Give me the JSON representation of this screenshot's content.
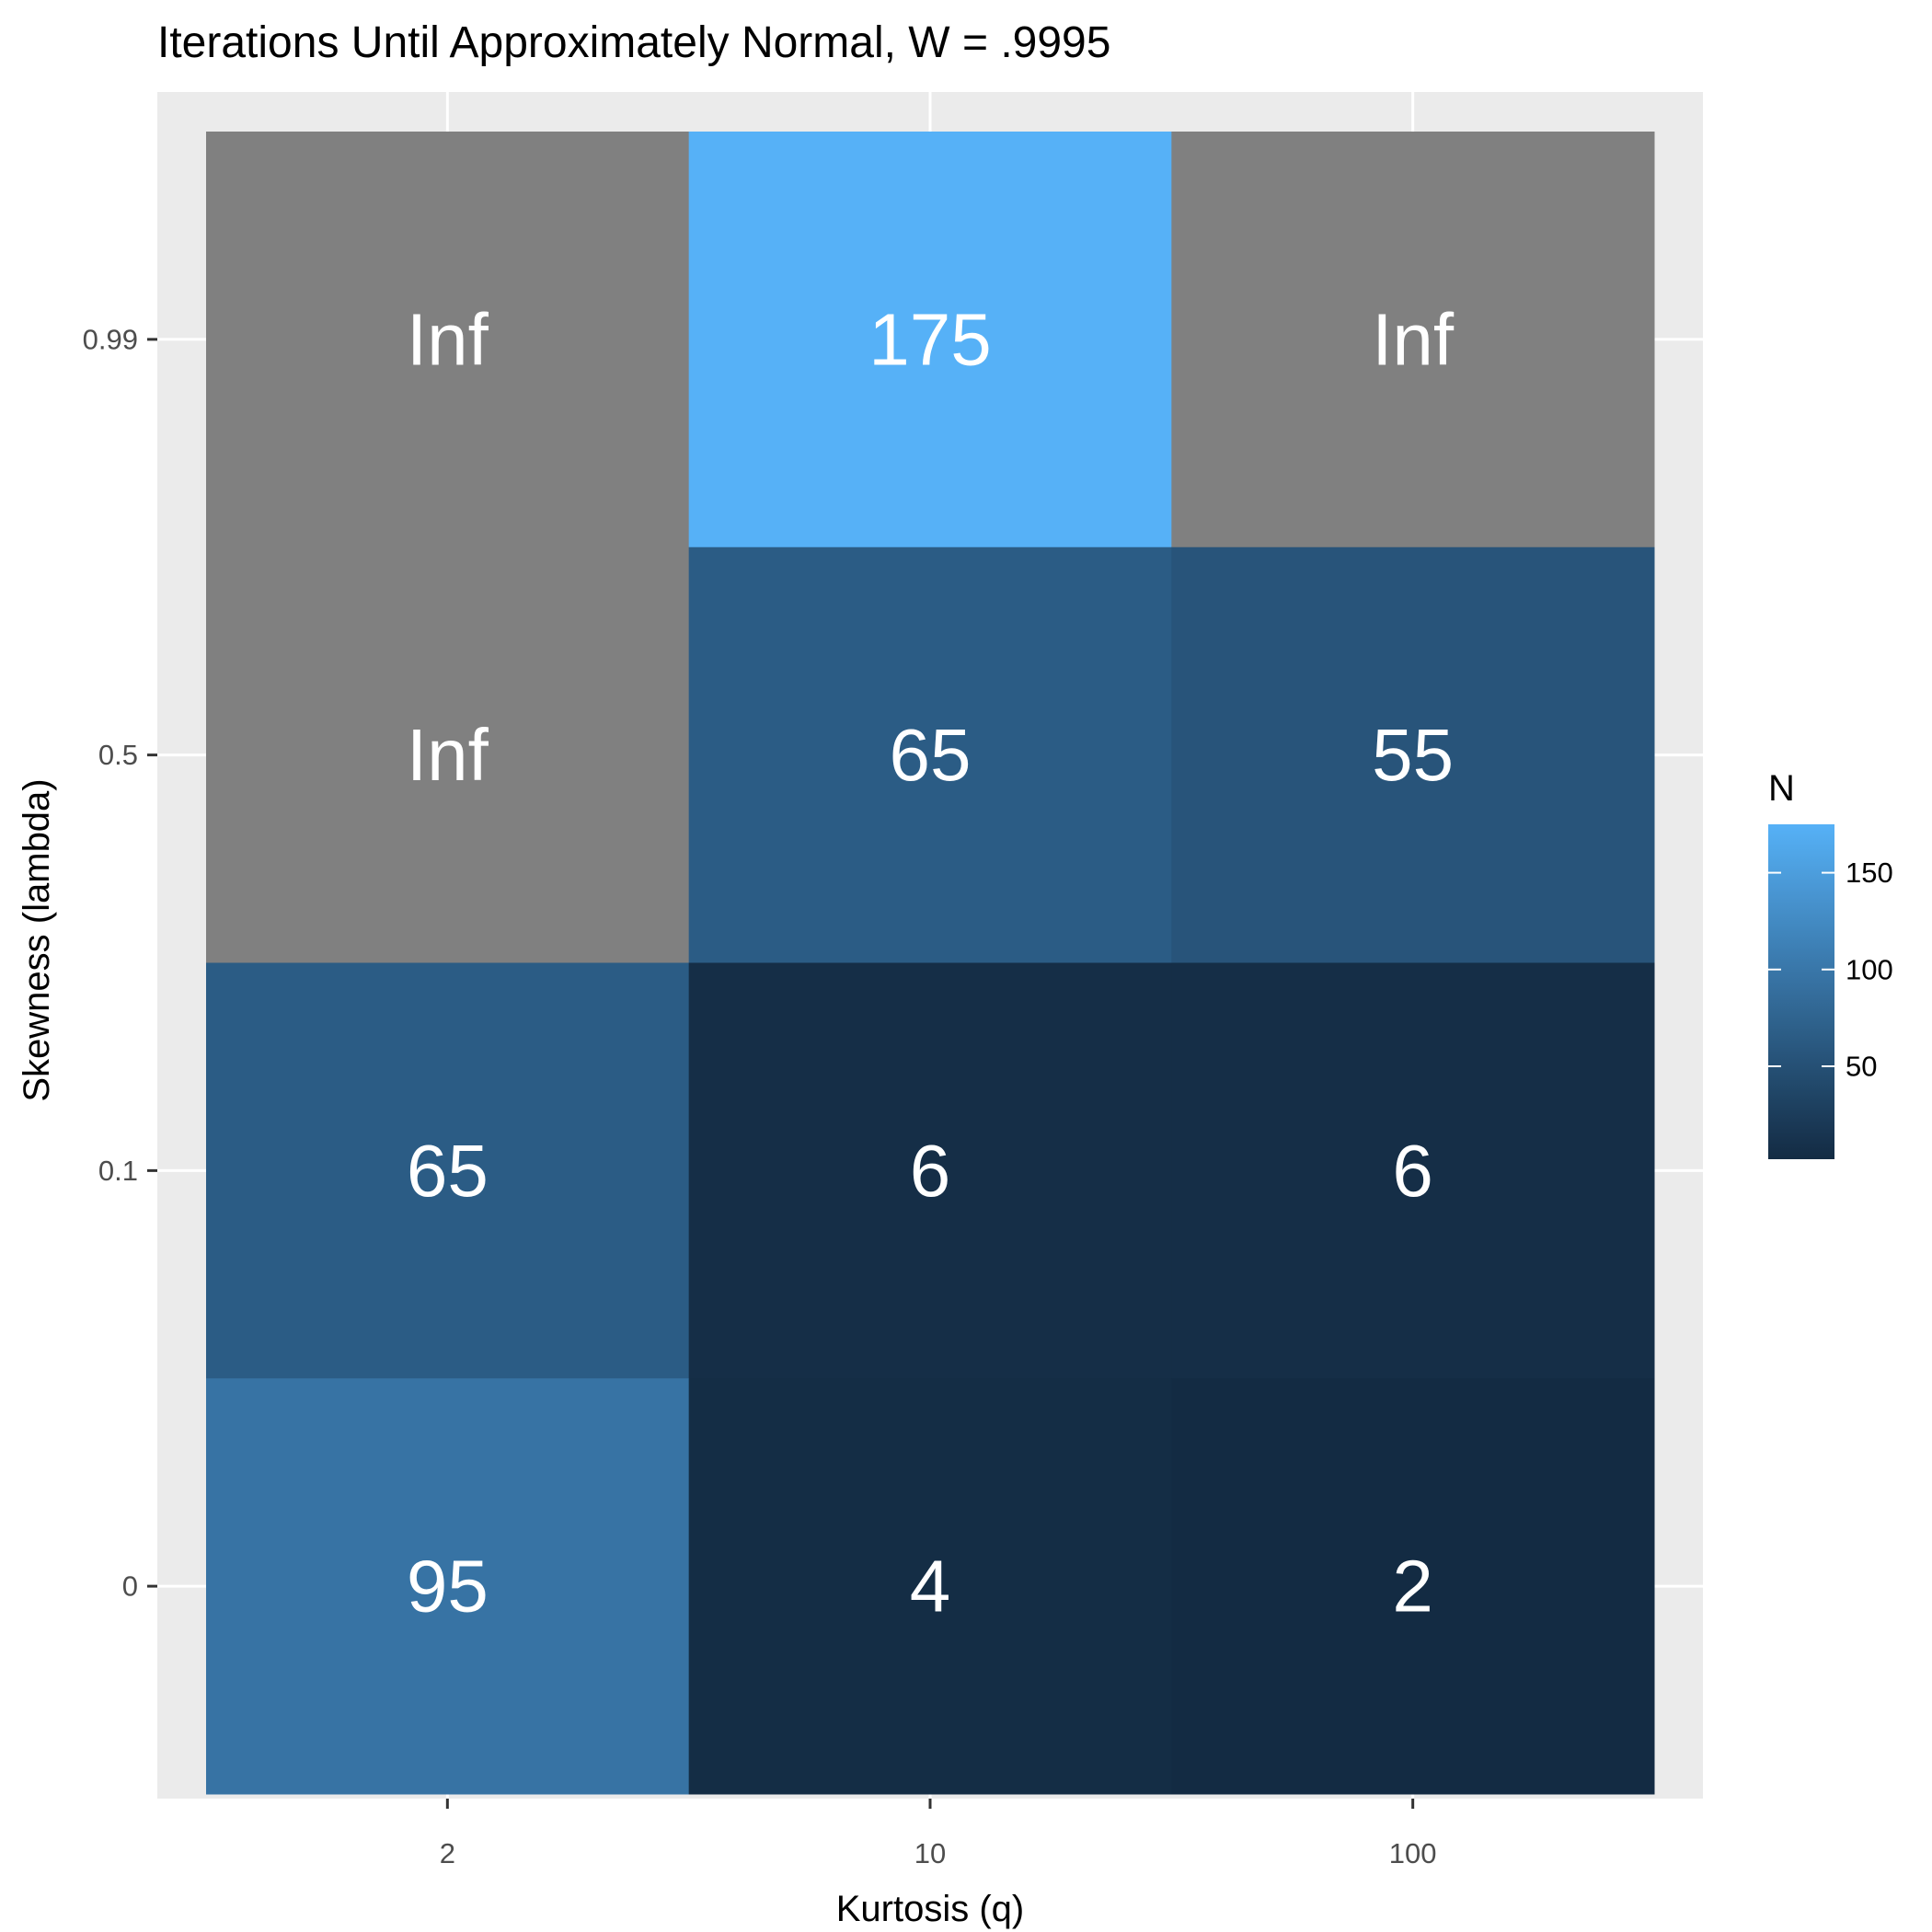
{
  "chart_data": {
    "type": "heatmap",
    "title": "Iterations Until Approximately Normal, W = .9995",
    "xlabel": "Kurtosis (q)",
    "ylabel": "Skewness (lambda)",
    "x_categories": [
      "2",
      "10",
      "100"
    ],
    "y_categories": [
      "0",
      "0.1",
      "0.5",
      "0.99"
    ],
    "cells": [
      {
        "x": "2",
        "y": "0.99",
        "value": null,
        "label": "Inf"
      },
      {
        "x": "10",
        "y": "0.99",
        "value": 175,
        "label": "175"
      },
      {
        "x": "100",
        "y": "0.99",
        "value": null,
        "label": "Inf"
      },
      {
        "x": "2",
        "y": "0.5",
        "value": null,
        "label": "Inf"
      },
      {
        "x": "10",
        "y": "0.5",
        "value": 65,
        "label": "65"
      },
      {
        "x": "100",
        "y": "0.5",
        "value": 55,
        "label": "55"
      },
      {
        "x": "2",
        "y": "0.1",
        "value": 65,
        "label": "65"
      },
      {
        "x": "10",
        "y": "0.1",
        "value": 6,
        "label": "6"
      },
      {
        "x": "100",
        "y": "0.1",
        "value": 6,
        "label": "6"
      },
      {
        "x": "2",
        "y": "0",
        "value": 95,
        "label": "95"
      },
      {
        "x": "10",
        "y": "0",
        "value": 4,
        "label": "4"
      },
      {
        "x": "100",
        "y": "0",
        "value": 2,
        "label": "2"
      }
    ],
    "legend": {
      "title": "N",
      "ticks": [
        50,
        100,
        150
      ],
      "range": [
        2,
        175
      ],
      "low_color": "#132B43",
      "high_color": "#56B1F7",
      "placement": "right"
    },
    "na_color": "#808080",
    "background_color": "#EBEBEB",
    "grid": true
  }
}
